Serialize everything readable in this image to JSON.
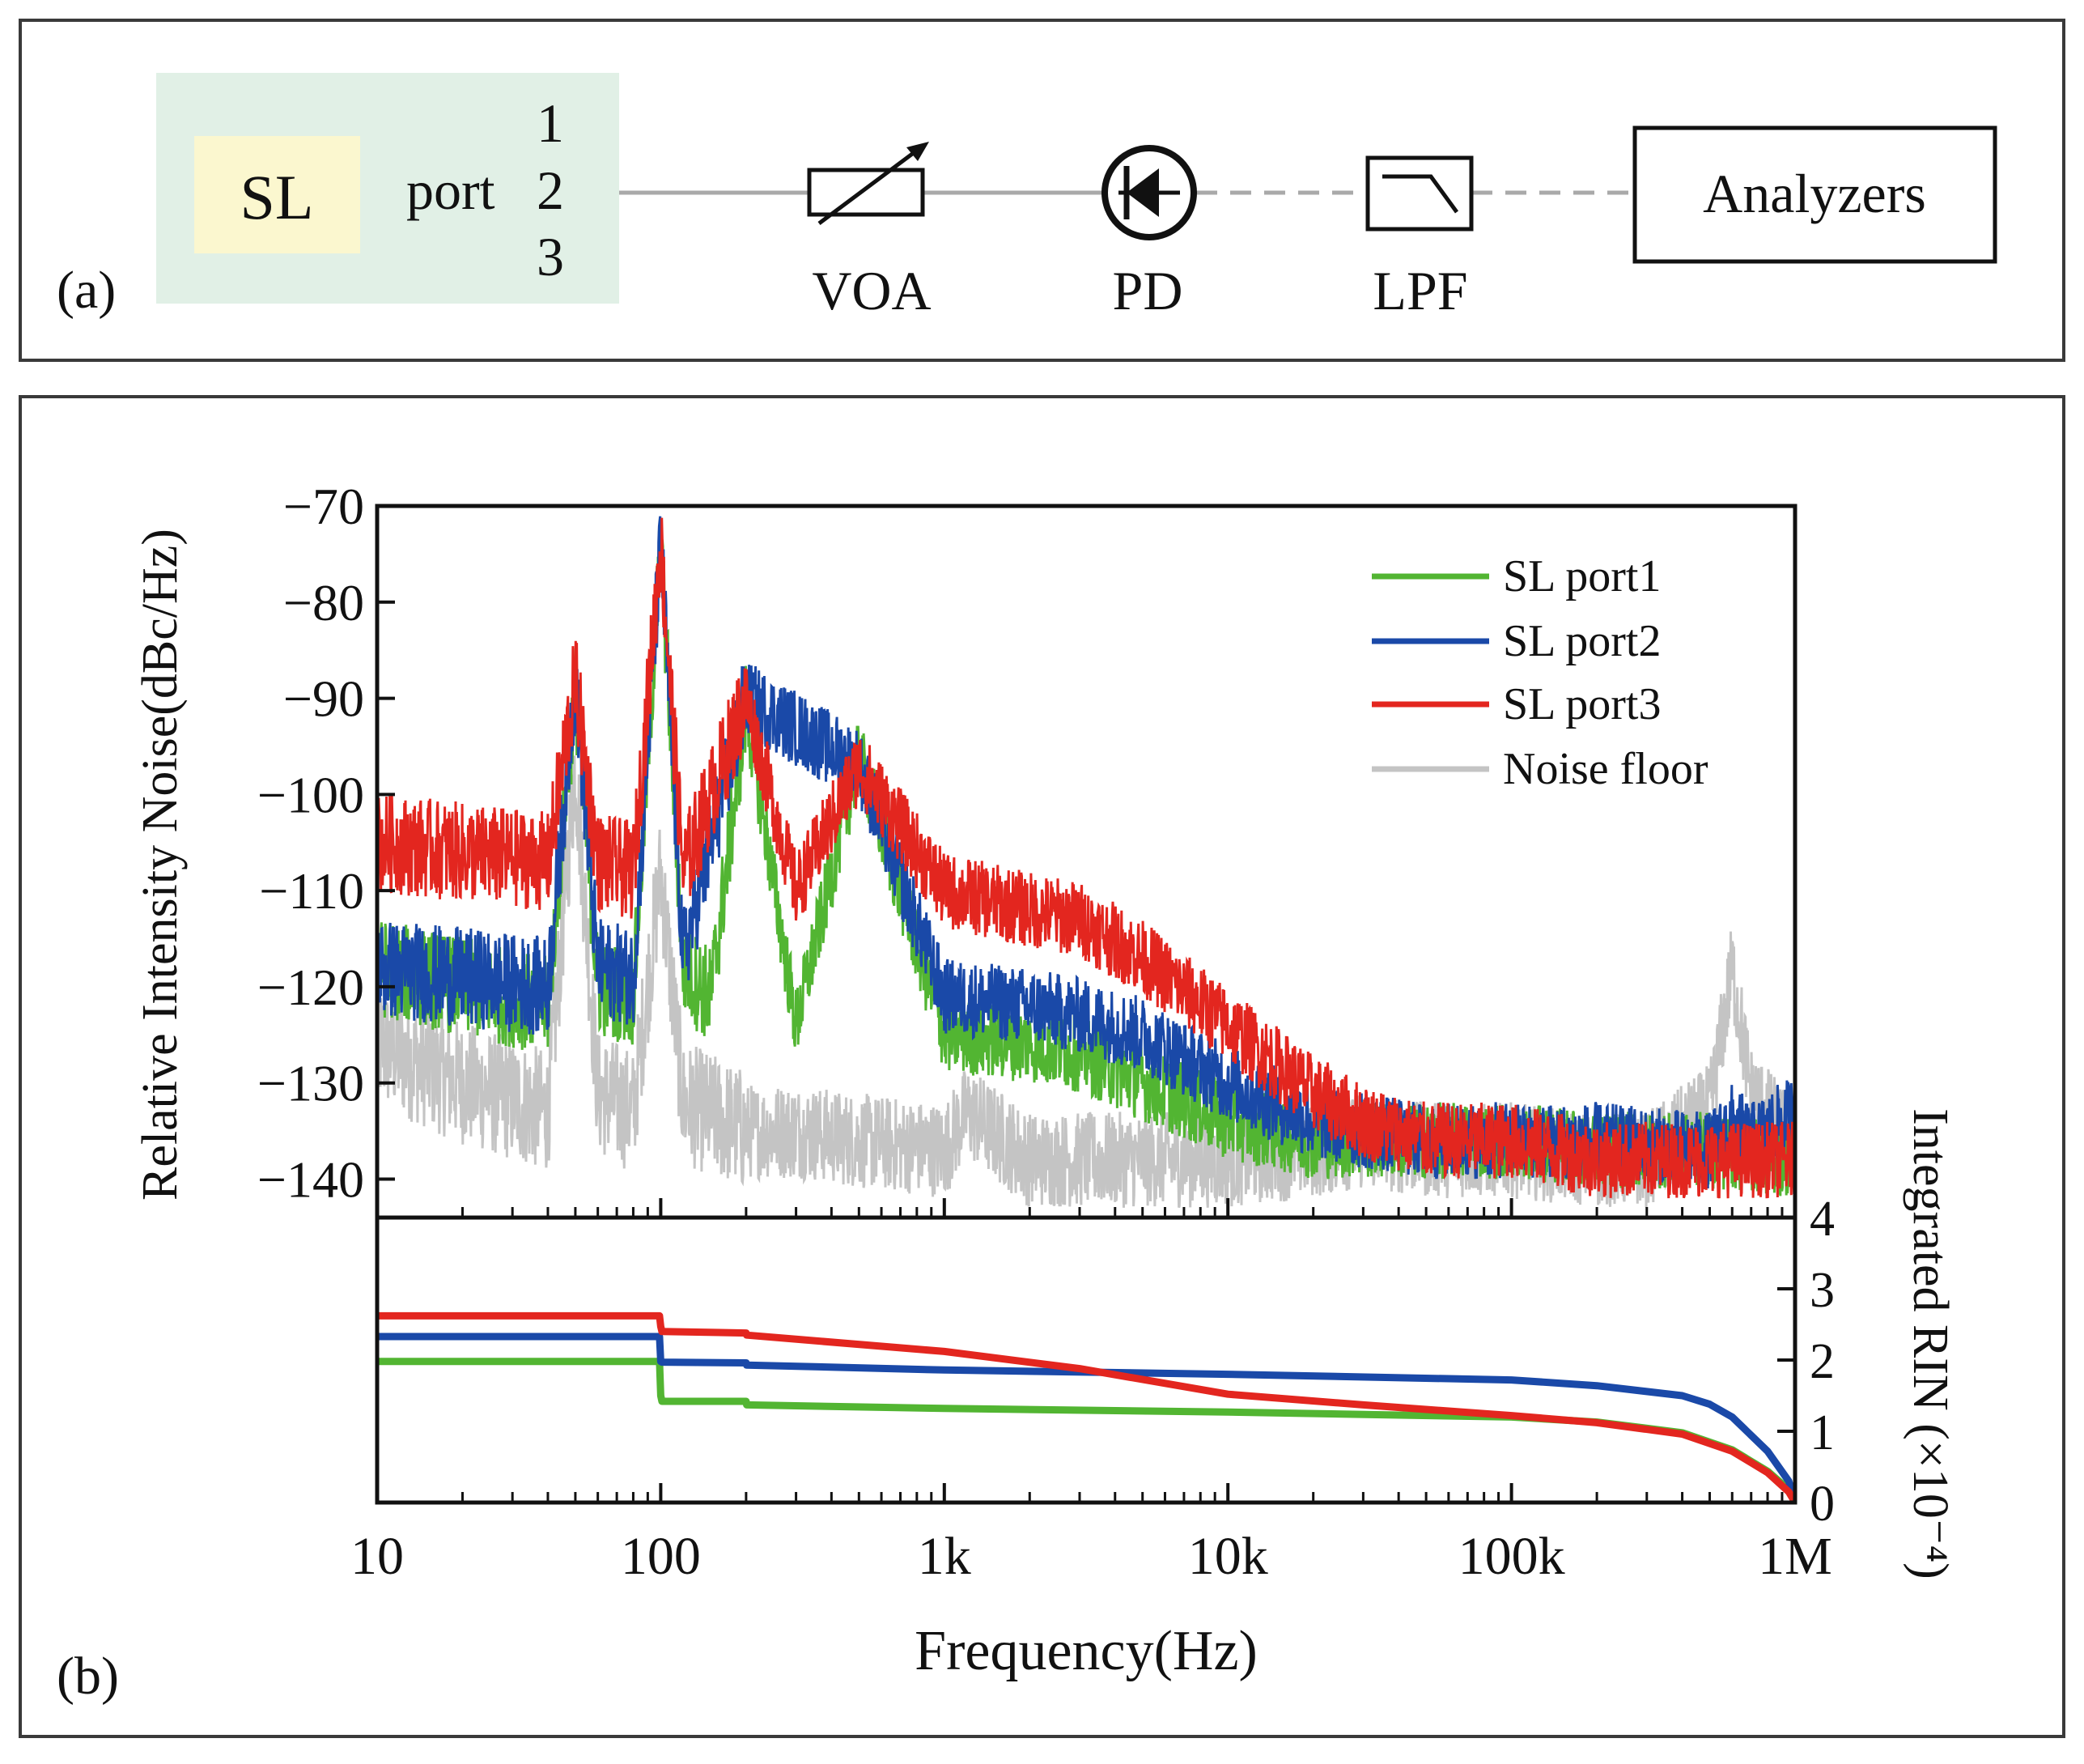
{
  "panel_a": {
    "label": "(a)",
    "sl_label": "SL",
    "port_text": "port",
    "port_numbers": [
      "1",
      "2",
      "3"
    ],
    "components": [
      {
        "name": "voa",
        "label": "VOA",
        "icon": "variable-attenuator-icon"
      },
      {
        "name": "pd",
        "label": "PD",
        "icon": "photodiode-icon"
      },
      {
        "name": "lpf",
        "label": "LPF",
        "icon": "lowpass-filter-icon"
      }
    ],
    "analyzers_label": "Analyzers",
    "colors": {
      "sl_box": "#e1f0e6",
      "sl_inner": "#fbf7cf",
      "line": "#a9a9a9"
    }
  },
  "panel_b": {
    "label": "(b)"
  },
  "chart_data": [
    {
      "type": "line",
      "title": "",
      "xlabel": "Frequency(Hz)",
      "ylabel": "Relative Intensity Noise(dBc/Hz)",
      "x_scale": "log",
      "xlim": [
        10,
        1000000
      ],
      "ylim": [
        -144,
        -70
      ],
      "x_ticks": [
        10,
        100,
        1000,
        10000,
        100000,
        1000000
      ],
      "x_tick_labels": [
        "10",
        "100",
        "1k",
        "10k",
        "100k",
        "1M"
      ],
      "y_ticks": [
        -70,
        -80,
        -90,
        -100,
        -110,
        -120,
        -130,
        -140
      ],
      "y_tick_labels": [
        "−70",
        "−80",
        "−90",
        "−100",
        "−110",
        "−120",
        "−130",
        "−140"
      ],
      "legend_position": "top-right",
      "series": [
        {
          "name": "Noise floor",
          "color": "#c4c4c4",
          "x": [
            10,
            20,
            40,
            50,
            60,
            80,
            100,
            120,
            200,
            300,
            500,
            1000,
            1200,
            2000,
            3000,
            5000,
            10000,
            20000,
            30000,
            50000,
            100000,
            200000,
            300000,
            500000,
            600000,
            700000,
            1000000
          ],
          "y": [
            -126,
            -130,
            -133,
            -97,
            -131,
            -133,
            -108,
            -132,
            -135,
            -135,
            -136,
            -137,
            -133,
            -138,
            -138,
            -138,
            -138,
            -137,
            -136,
            -137,
            -137,
            -138,
            -138,
            -133,
            -118,
            -131,
            -137
          ],
          "noise": 5.0
        },
        {
          "name": "SL port1",
          "color": "#52b532",
          "x": [
            10,
            20,
            40,
            50,
            60,
            80,
            100,
            120,
            150,
            200,
            300,
            500,
            1000,
            2000,
            3000,
            5000,
            10000,
            20000,
            30000,
            50000,
            100000,
            200000,
            500000,
            1000000
          ],
          "y": [
            -118,
            -120,
            -122,
            -89,
            -120,
            -121,
            -74,
            -118,
            -121,
            -91,
            -124,
            -96,
            -125,
            -126,
            -127,
            -130,
            -134,
            -136,
            -136,
            -136,
            -136,
            -137,
            -137,
            -138
          ],
          "noise": 4.0
        },
        {
          "name": "SL port2",
          "color": "#1a49a8",
          "x": [
            10,
            20,
            40,
            50,
            60,
            80,
            100,
            120,
            200,
            500,
            1000,
            2000,
            3000,
            5000,
            10000,
            20000,
            30000,
            50000,
            100000,
            200000,
            500000,
            600000,
            700000,
            1000000
          ],
          "y": [
            -118,
            -119,
            -120,
            -88,
            -118,
            -119,
            -74,
            -117,
            -90,
            -97,
            -121,
            -122,
            -123,
            -125,
            -130,
            -134,
            -135,
            -136,
            -136,
            -136,
            -137,
            -134,
            -136,
            -133
          ],
          "noise": 4.0
        },
        {
          "name": "SL port3",
          "color": "#e3261f",
          "x": [
            10,
            20,
            40,
            50,
            60,
            80,
            100,
            120,
            200,
            300,
            500,
            1000,
            2000,
            3000,
            5000,
            10000,
            20000,
            30000,
            50000,
            100000,
            200000,
            500000,
            1000000
          ],
          "y": [
            -105,
            -106,
            -107,
            -88,
            -107,
            -108,
            -74,
            -108,
            -90,
            -110,
            -97,
            -110,
            -112,
            -113,
            -117,
            -124,
            -131,
            -134,
            -136,
            -136,
            -138,
            -138,
            -138
          ],
          "noise": 4.0
        }
      ]
    },
    {
      "type": "line",
      "title": "",
      "xlabel": "Frequency(Hz)",
      "ylabel": "Integrated RIN (×10⁻⁴)",
      "x_scale": "log",
      "xlim": [
        10,
        1000000
      ],
      "ylim": [
        0,
        4
      ],
      "y_ticks": [
        0,
        1,
        2,
        3,
        4
      ],
      "y_tick_labels": [
        "0",
        "1",
        "2",
        "3",
        "4"
      ],
      "y_axis_side": "right",
      "series": [
        {
          "name": "SL port1",
          "color": "#52b532",
          "x": [
            10,
            99,
            100,
            101,
            200,
            201,
            1000,
            10000,
            100000,
            200000,
            400000,
            600000,
            800000,
            950000,
            1000000
          ],
          "y": [
            1.98,
            1.98,
            1.5,
            1.42,
            1.42,
            1.37,
            1.32,
            1.27,
            1.2,
            1.13,
            0.98,
            0.74,
            0.44,
            0.18,
            0.0
          ]
        },
        {
          "name": "SL port2",
          "color": "#1a49a8",
          "x": [
            10,
            99,
            100,
            101,
            200,
            201,
            1000,
            10000,
            100000,
            200000,
            400000,
            500000,
            600000,
            800000,
            950000,
            1000000
          ],
          "y": [
            2.33,
            2.33,
            1.98,
            1.97,
            1.96,
            1.93,
            1.86,
            1.8,
            1.72,
            1.64,
            1.5,
            1.38,
            1.2,
            0.72,
            0.3,
            0.0
          ]
        },
        {
          "name": "SL port3",
          "color": "#e3261f",
          "x": [
            10,
            99,
            100,
            101,
            200,
            201,
            1000,
            3000,
            10000,
            30000,
            100000,
            200000,
            400000,
            600000,
            800000,
            950000,
            1000000
          ],
          "y": [
            2.62,
            2.62,
            2.47,
            2.4,
            2.38,
            2.35,
            2.12,
            1.88,
            1.52,
            1.37,
            1.22,
            1.12,
            0.96,
            0.72,
            0.42,
            0.15,
            0.0
          ]
        }
      ]
    }
  ]
}
